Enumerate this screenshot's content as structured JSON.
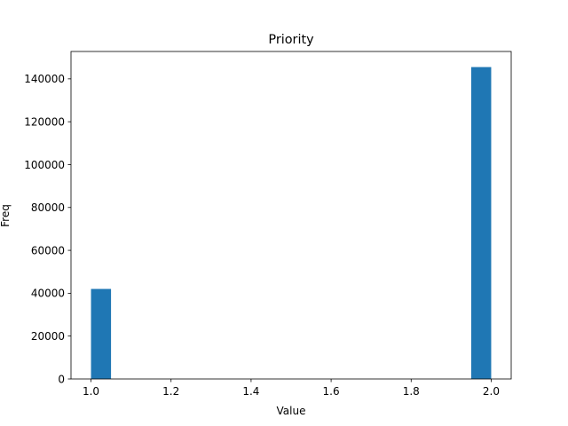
{
  "chart_data": {
    "type": "bar",
    "title": "Priority",
    "xlabel": "Value",
    "ylabel": "Freq",
    "bar_color": "#1f77b4",
    "bins": [
      {
        "x0": 1.0,
        "x1": 1.05,
        "count": 42000
      },
      {
        "x0": 1.95,
        "x1": 2.0,
        "count": 145500
      }
    ],
    "xlim": [
      0.95,
      2.05
    ],
    "ylim": [
      0,
      152775
    ],
    "xticks": [
      1.0,
      1.2,
      1.4,
      1.6,
      1.8,
      2.0
    ],
    "xtick_labels": [
      "1.0",
      "1.2",
      "1.4",
      "1.6",
      "1.8",
      "2.0"
    ],
    "yticks": [
      0,
      20000,
      40000,
      60000,
      80000,
      100000,
      120000,
      140000
    ],
    "ytick_labels": [
      "0",
      "20000",
      "40000",
      "60000",
      "80000",
      "100000",
      "120000",
      "140000"
    ],
    "grid": false,
    "legend": "none"
  }
}
